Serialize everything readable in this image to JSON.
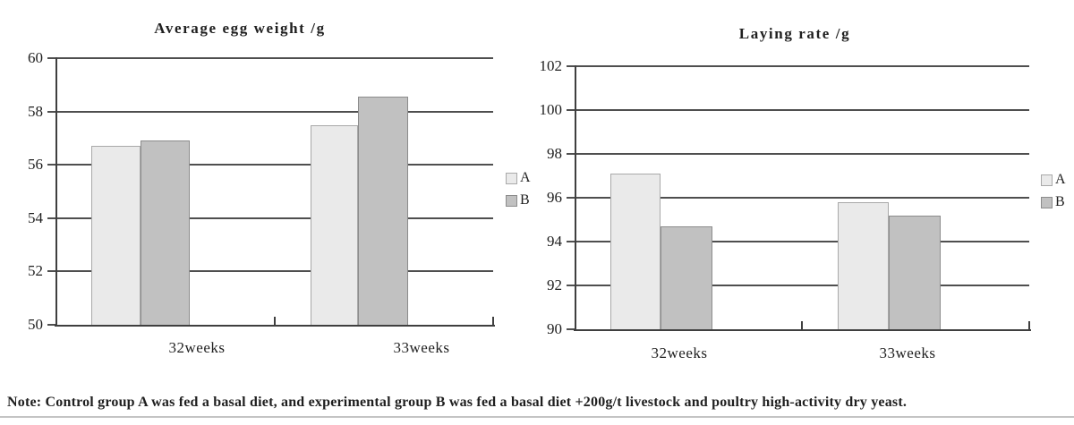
{
  "note": {
    "text": "Note: Control group A was fed a basal diet, and experimental group B was fed a basal diet +200g/t livestock and poultry high-activity dry yeast."
  },
  "colors": {
    "series_a_fill": "#eaeaea",
    "series_a_border": "#a9a9a9",
    "series_b_fill": "#c1c1c1",
    "series_b_border": "#8c8c8c",
    "grid": "#4f4f4f",
    "axis": "#3f3f3f",
    "text": "#1f1f1f",
    "divider": "#c4c4c4",
    "background": "#ffffff"
  },
  "chart_data": [
    {
      "type": "bar",
      "title": "Average egg weight /g",
      "categories": [
        "32weeks",
        "33weeks"
      ],
      "series": [
        {
          "name": "A",
          "values": [
            56.7,
            57.5
          ]
        },
        {
          "name": "B",
          "values": [
            56.9,
            58.55
          ]
        }
      ],
      "xlabel": "",
      "ylabel": "",
      "ylim": [
        50,
        60
      ],
      "yticks": [
        50,
        52,
        54,
        56,
        58,
        60
      ],
      "grid": true,
      "legend": [
        "A",
        "B"
      ],
      "legend_position": "right"
    },
    {
      "type": "bar",
      "title": "Laying rate /g",
      "categories": [
        "32weeks",
        "33weeks"
      ],
      "series": [
        {
          "name": "A",
          "values": [
            97.1,
            95.8
          ]
        },
        {
          "name": "B",
          "values": [
            94.7,
            95.2
          ]
        }
      ],
      "xlabel": "",
      "ylabel": "",
      "ylim": [
        90,
        102
      ],
      "yticks": [
        90,
        92,
        94,
        96,
        98,
        100,
        102
      ],
      "grid": true,
      "legend": [
        "A",
        "B"
      ],
      "legend_position": "right"
    }
  ]
}
